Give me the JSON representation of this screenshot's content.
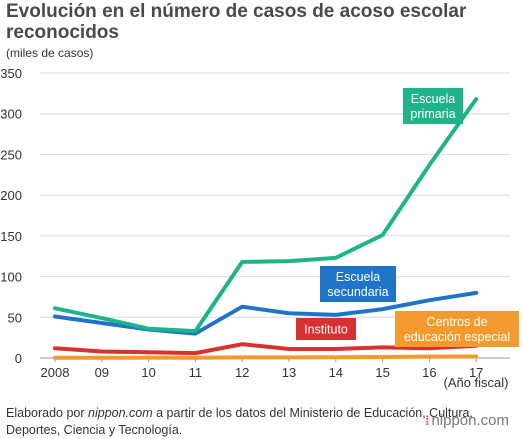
{
  "title": "Evolución en el número de casos de acoso escolar reconocidos",
  "unit_label": "(miles de casos)",
  "source": {
    "prefix": "Elaborado por ",
    "brand": "nippon.com",
    "suffix": " a partir de los datos del Ministerio de Educación, Cultura, Deportes, Ciencia y Tecnología."
  },
  "logo": "nippon.com",
  "chart_data": {
    "type": "line",
    "title": "Evolución en el número de casos de acoso escolar reconocidos",
    "ylabel": "(miles de casos)",
    "xlabel": "(Año fiscal)",
    "categories": [
      "2008",
      "09",
      "10",
      "11",
      "12",
      "13",
      "14",
      "15",
      "16",
      "17"
    ],
    "ylim": [
      0,
      350
    ],
    "yticks": [
      0,
      50,
      100,
      150,
      200,
      250,
      300,
      350
    ],
    "grid": "horizontal",
    "series": [
      {
        "name": "Escuela primaria",
        "color": "#1fb38a",
        "values": [
          61,
          49,
          36,
          33,
          118,
          119,
          123,
          151,
          237,
          318
        ]
      },
      {
        "name": "Escuela secundaria",
        "color": "#1f74c8",
        "values": [
          51,
          43,
          35,
          30,
          63,
          55,
          53,
          60,
          71,
          80
        ]
      },
      {
        "name": "Instituto",
        "color": "#d63232",
        "values": [
          12,
          8,
          7,
          6,
          17,
          11,
          11,
          13,
          12,
          15
        ]
      },
      {
        "name": "Centros de educación especial",
        "color": "#f29a2e",
        "values": [
          0.3,
          0.3,
          0.4,
          0.3,
          0.8,
          0.7,
          0.9,
          1.3,
          1.7,
          1.9
        ]
      }
    ]
  }
}
